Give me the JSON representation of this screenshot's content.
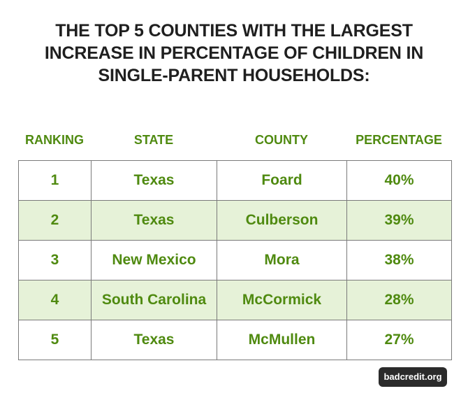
{
  "chart_data": {
    "type": "table",
    "title_lines": [
      "THE TOP 5 COUNTIES WITH THE LARGEST",
      "INCREASE IN PERCENTAGE OF CHILDREN IN",
      "SINGLE-PARENT HOUSEHOLDS:"
    ],
    "columns": [
      "RANKING",
      "STATE",
      "COUNTY",
      "PERCENTAGE"
    ],
    "rows": [
      [
        "1",
        "Texas",
        "Foard",
        "40%"
      ],
      [
        "2",
        "Texas",
        "Culberson",
        "39%"
      ],
      [
        "3",
        "New Mexico",
        "Mora",
        "38%"
      ],
      [
        "4",
        "South Carolina",
        "McCormick",
        "28%"
      ],
      [
        "5",
        "Texas",
        "McMullen",
        "27%"
      ]
    ],
    "values": [
      40,
      39,
      38,
      28,
      27
    ]
  },
  "branding": {
    "badge": "badcredit.org"
  },
  "colors": {
    "accent": "#4f8a10",
    "row_shade": "#e6f2d8",
    "title": "#1f1f1f",
    "badge_bg": "#2b2b2b"
  }
}
